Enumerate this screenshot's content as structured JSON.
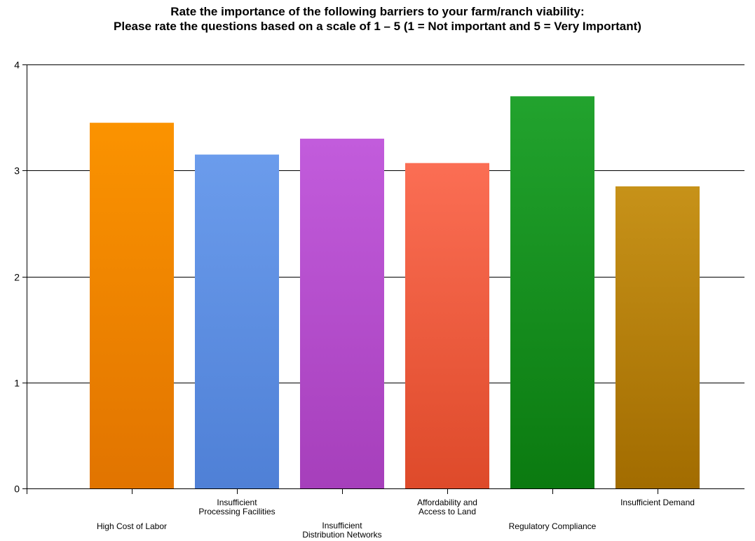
{
  "chart_data": {
    "type": "bar",
    "title": "Rate the importance of the following barriers to your farm/ranch viability:",
    "subtitle": "Please rate the questions based on a scale of 1 – 5 (1 = Not important and 5 = Very Important)",
    "xlabel": "",
    "ylabel": "",
    "ylim": [
      0,
      4
    ],
    "yticks": [
      0,
      1,
      2,
      3,
      4
    ],
    "grid": true,
    "categories": [
      {
        "lines": [
          "High Cost of Labor"
        ],
        "row": "low"
      },
      {
        "lines": [
          "Insufficient",
          "Processing Facilities"
        ],
        "row": "high"
      },
      {
        "lines": [
          "Insufficient",
          "Distribution Networks"
        ],
        "row": "low"
      },
      {
        "lines": [
          "Affordability and",
          "Access to Land"
        ],
        "row": "high"
      },
      {
        "lines": [
          "Regulatory Compliance"
        ],
        "row": "low"
      },
      {
        "lines": [
          "Insufficient Demand"
        ],
        "row": "high"
      }
    ],
    "values": [
      3.45,
      3.15,
      3.3,
      3.07,
      3.7,
      2.85
    ],
    "colors": [
      {
        "top": "#fb9300",
        "bottom": "#e17400"
      },
      {
        "top": "#6b9cec",
        "bottom": "#4f80d6"
      },
      {
        "top": "#c25cdc",
        "bottom": "#a63fbb"
      },
      {
        "top": "#fb6e54",
        "bottom": "#de4a2a"
      },
      {
        "top": "#22a32e",
        "bottom": "#0b7a10"
      },
      {
        "top": "#c79219",
        "bottom": "#a26c00"
      }
    ]
  }
}
